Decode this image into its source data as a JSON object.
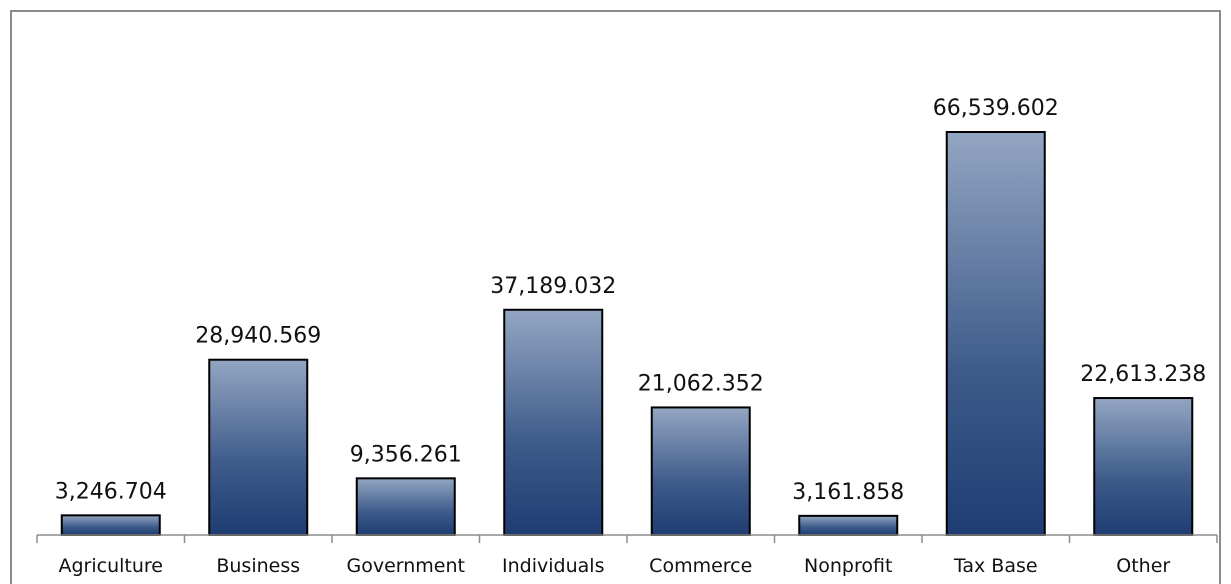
{
  "chart_data": {
    "type": "bar",
    "title": "",
    "xlabel": "",
    "ylabel": "",
    "categories": [
      "Agriculture",
      "Business",
      "Government",
      "Individuals",
      "Commerce",
      "Nonprofit",
      "Tax Base",
      "Other"
    ],
    "values": [
      3246.704,
      28940.569,
      9356.261,
      37189.032,
      21062.352,
      3161.858,
      66539.602,
      22613.238
    ],
    "value_labels": [
      "3,246.704",
      "28,940.569",
      "9,356.261",
      "37,189.032",
      "21,062.352",
      "3,161.858",
      "66,539.602",
      "22,613.238"
    ],
    "ylim": [
      0,
      66539.602
    ],
    "grid": false,
    "legend": "none",
    "colors": {
      "bar_top": "#93a6c2",
      "bar_bottom": "#1f3d72",
      "bar_stroke": "#000000",
      "frame": "#8c8c8c",
      "axis": "#8c8c8c"
    }
  }
}
